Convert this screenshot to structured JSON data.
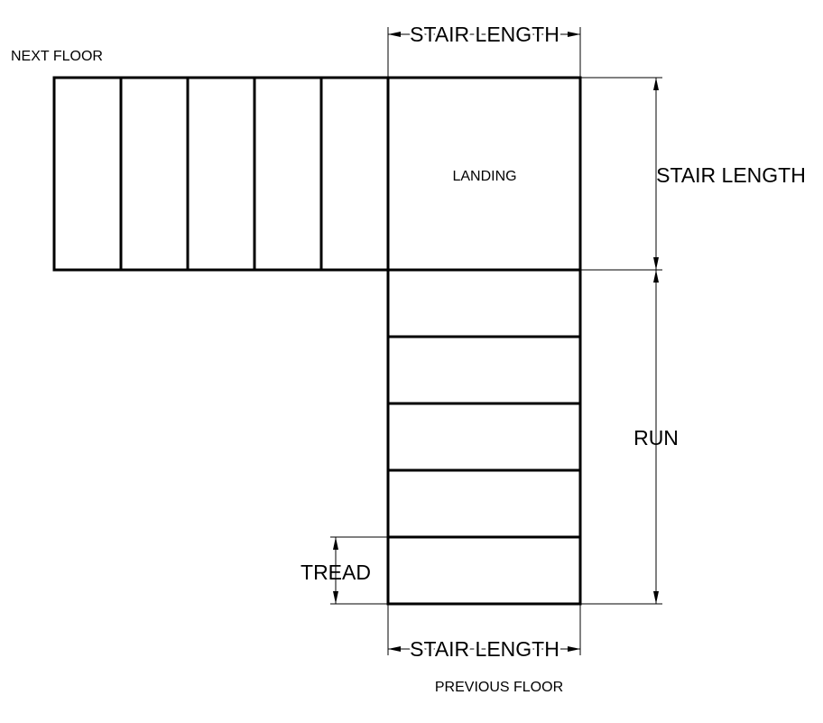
{
  "labels": {
    "next_floor": "NEXT FLOOR",
    "previous_floor": "PREVIOUS FLOOR",
    "landing": "LANDING",
    "stair_length_top": "STAIR LENGTH",
    "stair_length_right": "STAIR LENGTH",
    "stair_length_bottom": "STAIR LENGTH",
    "run": "RUN",
    "tread": "TREAD"
  }
}
